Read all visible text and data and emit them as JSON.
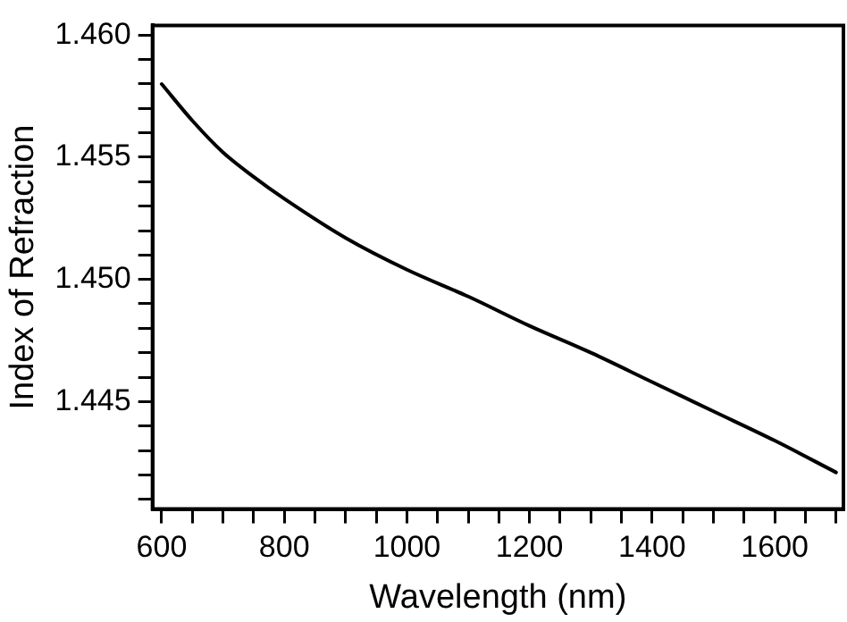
{
  "chart_data": {
    "type": "line",
    "xlabel": "Wavelength (nm)",
    "ylabel": "Index of Refraction",
    "x": [
      600,
      650,
      700,
      750,
      800,
      900,
      1000,
      1100,
      1200,
      1300,
      1400,
      1500,
      1600,
      1700
    ],
    "series": [
      {
        "color": "#000000",
        "values": [
          1.458,
          1.4565,
          1.4552,
          1.4542,
          1.4533,
          1.4517,
          1.4504,
          1.4493,
          1.4481,
          1.447,
          1.4458,
          1.4446,
          1.4434,
          1.4421
        ]
      }
    ],
    "xlim": [
      585,
      1712
    ],
    "ylim": [
      1.4406,
      1.4604
    ],
    "xticks": [
      600,
      {
        "value": 650,
        "label": null
      },
      800,
      {
        "value": 700,
        "label": null
      },
      {
        "value": 750,
        "label": null
      },
      {
        "value": 850,
        "label": null
      },
      {
        "value": 900,
        "label": null
      },
      {
        "value": 950,
        "label": null
      },
      1000,
      {
        "value": 1050,
        "label": null
      },
      {
        "value": 1100,
        "label": null
      },
      {
        "value": 1150,
        "label": null
      },
      1200,
      {
        "value": 1250,
        "label": null
      },
      {
        "value": 1300,
        "label": null
      },
      {
        "value": 1350,
        "label": null
      },
      1400,
      {
        "value": 1450,
        "label": null
      },
      {
        "value": 1500,
        "label": null
      },
      {
        "value": 1550,
        "label": null
      },
      1600,
      {
        "value": 1650,
        "label": null
      },
      {
        "value": 1700,
        "label": null
      }
    ],
    "yticks": [
      {
        "value": 1.441,
        "label": null
      },
      {
        "value": 1.442,
        "label": null
      },
      {
        "value": 1.443,
        "label": null
      },
      {
        "value": 1.444,
        "label": null
      },
      {
        "value": 1.445,
        "label": "1.445"
      },
      {
        "value": 1.446,
        "label": null
      },
      {
        "value": 1.447,
        "label": null
      },
      {
        "value": 1.448,
        "label": null
      },
      {
        "value": 1.449,
        "label": null
      },
      {
        "value": 1.45,
        "label": "1.450"
      },
      {
        "value": 1.451,
        "label": null
      },
      {
        "value": 1.452,
        "label": null
      },
      {
        "value": 1.453,
        "label": null
      },
      {
        "value": 1.454,
        "label": null
      },
      {
        "value": 1.455,
        "label": "1.455"
      },
      {
        "value": 1.456,
        "label": null
      },
      {
        "value": 1.457,
        "label": null
      },
      {
        "value": 1.458,
        "label": null
      },
      {
        "value": 1.459,
        "label": null
      },
      {
        "value": 1.46,
        "label": "1.460"
      }
    ],
    "grid": false,
    "legend": false,
    "marker": "none",
    "line_style": "solid"
  }
}
